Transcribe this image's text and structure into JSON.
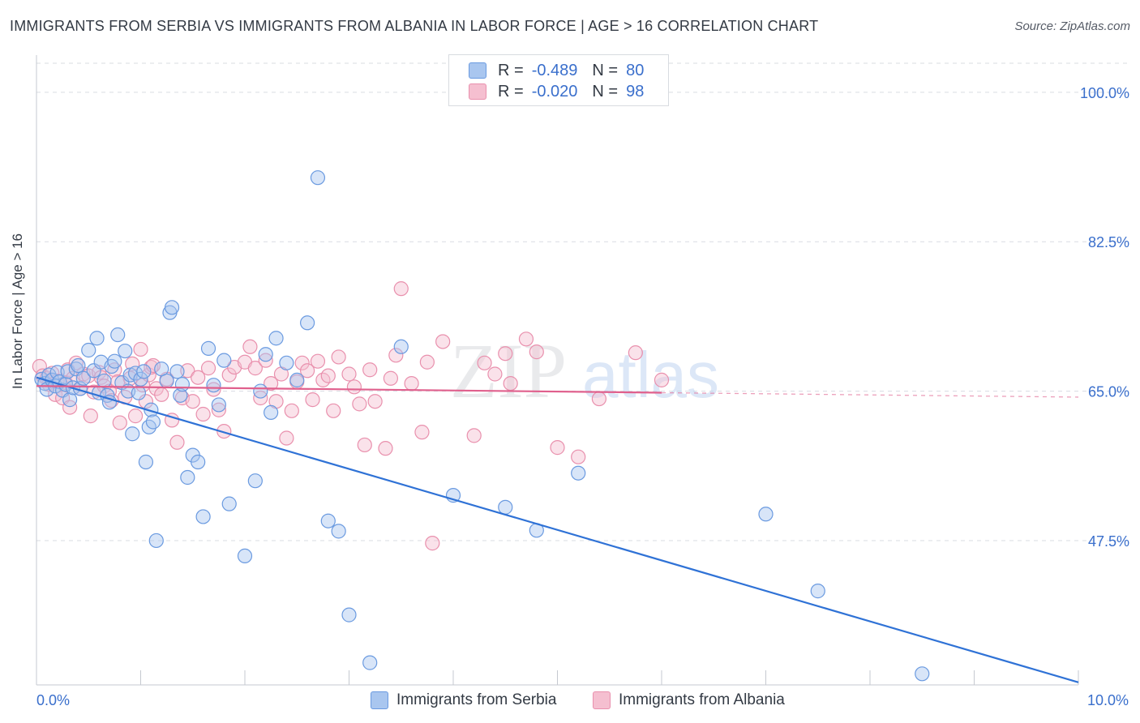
{
  "header": {
    "title": "IMMIGRANTS FROM SERBIA VS IMMIGRANTS FROM ALBANIA IN LABOR FORCE | AGE > 16 CORRELATION CHART",
    "source": "Source: ZipAtlas.com"
  },
  "watermark": {
    "zip": "ZIP",
    "atlas": "atlas"
  },
  "legend_top": {
    "rows": [
      {
        "r_label": "R =",
        "r_value": "-0.489",
        "n_label": "N =",
        "n_value": "80"
      },
      {
        "r_label": "R =",
        "r_value": "-0.020",
        "n_label": "N =",
        "n_value": "98"
      }
    ]
  },
  "legend_bottom": {
    "serbia": "Immigrants from Serbia",
    "albania": "Immigrants from Albania"
  },
  "colors": {
    "serbia_fill": "#a9c6ef",
    "serbia_stroke": "#6a9ae0",
    "serbia_line": "#2f72d6",
    "albania_fill": "#f5bfd0",
    "albania_stroke": "#e990ad",
    "albania_line": "#e0608d",
    "tick_label": "#3a6fcc",
    "grid": "#d9dce2"
  },
  "chart_data": {
    "type": "scatter",
    "title": "IMMIGRANTS FROM SERBIA VS IMMIGRANTS FROM ALBANIA IN LABOR FORCE | AGE > 16 CORRELATION CHART",
    "xlabel": "",
    "ylabel": "In Labor Force | Age > 16",
    "xlim": [
      0,
      10
    ],
    "ylim": [
      30.6,
      103.4
    ],
    "x_tick_labels": [
      "0.0%",
      "10.0%"
    ],
    "y_ticks": [
      47.5,
      65.0,
      82.5,
      100.0
    ],
    "y_tick_labels": [
      "47.5%",
      "65.0%",
      "82.5%",
      "100.0%"
    ],
    "grid": true,
    "series": [
      {
        "name": "Immigrants from Serbia",
        "r": -0.489,
        "n": 80,
        "trend": {
          "x": [
            0,
            10
          ],
          "y": [
            66.6,
            30.9
          ],
          "dashed_from": null
        },
        "points": [
          [
            0.05,
            66.4
          ],
          [
            0.08,
            65.9
          ],
          [
            0.1,
            65.2
          ],
          [
            0.12,
            66.9
          ],
          [
            0.15,
            66.3
          ],
          [
            0.18,
            65.6
          ],
          [
            0.2,
            67.2
          ],
          [
            0.22,
            66.1
          ],
          [
            0.25,
            65.1
          ],
          [
            0.28,
            65.8
          ],
          [
            0.3,
            67.3
          ],
          [
            0.32,
            64.0
          ],
          [
            0.35,
            65.4
          ],
          [
            0.38,
            67.6
          ],
          [
            0.4,
            68.0
          ],
          [
            0.42,
            65.3
          ],
          [
            0.45,
            66.5
          ],
          [
            0.5,
            69.8
          ],
          [
            0.55,
            67.4
          ],
          [
            0.58,
            71.2
          ],
          [
            0.6,
            64.8
          ],
          [
            0.62,
            68.4
          ],
          [
            0.65,
            66.2
          ],
          [
            0.68,
            64.5
          ],
          [
            0.7,
            63.7
          ],
          [
            0.72,
            67.9
          ],
          [
            0.75,
            68.5
          ],
          [
            0.78,
            71.6
          ],
          [
            0.82,
            66.0
          ],
          [
            0.85,
            69.7
          ],
          [
            0.88,
            65.0
          ],
          [
            0.9,
            66.9
          ],
          [
            0.92,
            60.0
          ],
          [
            0.95,
            67.1
          ],
          [
            0.98,
            64.8
          ],
          [
            1.0,
            66.4
          ],
          [
            1.03,
            67.3
          ],
          [
            1.05,
            56.7
          ],
          [
            1.08,
            60.8
          ],
          [
            1.1,
            62.8
          ],
          [
            1.12,
            61.4
          ],
          [
            1.15,
            47.5
          ],
          [
            1.2,
            67.6
          ],
          [
            1.25,
            66.2
          ],
          [
            1.28,
            74.2
          ],
          [
            1.3,
            74.8
          ],
          [
            1.35,
            67.3
          ],
          [
            1.38,
            64.5
          ],
          [
            1.4,
            65.8
          ],
          [
            1.45,
            54.9
          ],
          [
            1.5,
            57.5
          ],
          [
            1.55,
            56.7
          ],
          [
            1.6,
            50.3
          ],
          [
            1.65,
            70.0
          ],
          [
            1.7,
            65.7
          ],
          [
            1.75,
            63.4
          ],
          [
            1.8,
            68.6
          ],
          [
            1.85,
            51.8
          ],
          [
            2.0,
            45.7
          ],
          [
            2.1,
            54.5
          ],
          [
            2.15,
            65.0
          ],
          [
            2.2,
            69.3
          ],
          [
            2.25,
            62.5
          ],
          [
            2.3,
            71.2
          ],
          [
            2.4,
            68.3
          ],
          [
            2.5,
            66.3
          ],
          [
            2.6,
            73.0
          ],
          [
            2.7,
            90.0
          ],
          [
            2.8,
            49.8
          ],
          [
            2.9,
            48.6
          ],
          [
            3.0,
            38.8
          ],
          [
            3.2,
            33.2
          ],
          [
            3.5,
            70.2
          ],
          [
            4.0,
            52.8
          ],
          [
            4.5,
            51.4
          ],
          [
            4.8,
            48.7
          ],
          [
            5.2,
            55.4
          ],
          [
            7.5,
            41.6
          ],
          [
            7.0,
            50.6
          ],
          [
            8.5,
            31.9
          ]
        ]
      },
      {
        "name": "Immigrants from Albania",
        "r": -0.02,
        "n": 98,
        "trend": {
          "x": [
            0,
            10
          ],
          "y": [
            65.6,
            64.3
          ],
          "dashed_from": 6.0
        },
        "points": [
          [
            0.03,
            67.9
          ],
          [
            0.06,
            66.8
          ],
          [
            0.1,
            66.5
          ],
          [
            0.12,
            65.8
          ],
          [
            0.15,
            67.1
          ],
          [
            0.18,
            64.6
          ],
          [
            0.2,
            66.2
          ],
          [
            0.25,
            64.2
          ],
          [
            0.28,
            66.0
          ],
          [
            0.3,
            67.5
          ],
          [
            0.32,
            63.1
          ],
          [
            0.35,
            66.5
          ],
          [
            0.38,
            68.3
          ],
          [
            0.42,
            65.3
          ],
          [
            0.45,
            67.0
          ],
          [
            0.5,
            66.8
          ],
          [
            0.52,
            62.1
          ],
          [
            0.55,
            64.9
          ],
          [
            0.6,
            67.2
          ],
          [
            0.62,
            66.6
          ],
          [
            0.65,
            65.6
          ],
          [
            0.7,
            65.0
          ],
          [
            0.72,
            63.9
          ],
          [
            0.75,
            67.5
          ],
          [
            0.78,
            66.1
          ],
          [
            0.8,
            61.3
          ],
          [
            0.85,
            64.3
          ],
          [
            0.9,
            66.5
          ],
          [
            0.92,
            68.2
          ],
          [
            0.95,
            62.1
          ],
          [
            1.0,
            69.9
          ],
          [
            1.02,
            65.7
          ],
          [
            1.05,
            63.8
          ],
          [
            1.08,
            66.9
          ],
          [
            1.1,
            67.8
          ],
          [
            1.12,
            68.0
          ],
          [
            1.15,
            65.3
          ],
          [
            1.2,
            64.6
          ],
          [
            1.25,
            66.4
          ],
          [
            1.3,
            61.6
          ],
          [
            1.35,
            59.0
          ],
          [
            1.4,
            64.2
          ],
          [
            1.45,
            67.4
          ],
          [
            1.5,
            63.8
          ],
          [
            1.55,
            66.6
          ],
          [
            1.6,
            62.3
          ],
          [
            1.65,
            67.7
          ],
          [
            1.7,
            65.2
          ],
          [
            1.75,
            62.8
          ],
          [
            1.8,
            60.3
          ],
          [
            1.85,
            66.9
          ],
          [
            1.9,
            67.8
          ],
          [
            2.0,
            68.4
          ],
          [
            2.05,
            70.2
          ],
          [
            2.1,
            67.7
          ],
          [
            2.15,
            64.2
          ],
          [
            2.2,
            68.6
          ],
          [
            2.25,
            65.9
          ],
          [
            2.3,
            63.8
          ],
          [
            2.35,
            67.0
          ],
          [
            2.4,
            59.5
          ],
          [
            2.45,
            62.7
          ],
          [
            2.5,
            66.1
          ],
          [
            2.55,
            68.3
          ],
          [
            2.6,
            67.4
          ],
          [
            2.65,
            64.0
          ],
          [
            2.7,
            68.5
          ],
          [
            2.75,
            66.3
          ],
          [
            2.8,
            66.8
          ],
          [
            2.85,
            62.7
          ],
          [
            2.9,
            69.0
          ],
          [
            3.0,
            67.0
          ],
          [
            3.05,
            65.5
          ],
          [
            3.1,
            63.5
          ],
          [
            3.15,
            58.7
          ],
          [
            3.2,
            67.5
          ],
          [
            3.25,
            63.8
          ],
          [
            3.35,
            58.3
          ],
          [
            3.4,
            66.5
          ],
          [
            3.45,
            69.2
          ],
          [
            3.5,
            77.0
          ],
          [
            3.6,
            65.9
          ],
          [
            3.7,
            60.2
          ],
          [
            3.75,
            68.4
          ],
          [
            3.8,
            47.2
          ],
          [
            3.9,
            70.8
          ],
          [
            4.2,
            59.8
          ],
          [
            4.3,
            68.3
          ],
          [
            4.4,
            67.0
          ],
          [
            4.5,
            69.4
          ],
          [
            4.55,
            65.9
          ],
          [
            4.7,
            71.1
          ],
          [
            4.8,
            69.6
          ],
          [
            5.0,
            58.4
          ],
          [
            5.2,
            57.3
          ],
          [
            5.4,
            64.1
          ],
          [
            5.75,
            69.5
          ],
          [
            6.0,
            66.3
          ]
        ]
      }
    ]
  }
}
